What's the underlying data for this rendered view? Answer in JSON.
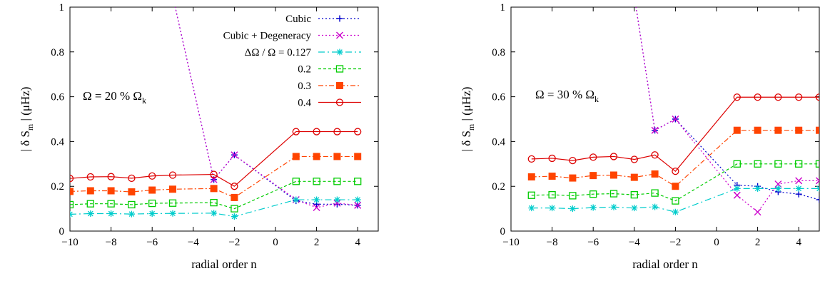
{
  "chart_data": [
    {
      "type": "line",
      "xlabel": "radial order n",
      "ylabel_main": "| δ S",
      "ylabel_sub": "m",
      "ylabel_tail": " | (μHz)",
      "annotation_main": "Ω = 20 % Ω",
      "annotation_sub": "k",
      "xlim": [
        -10,
        5
      ],
      "ylim": [
        0,
        1
      ],
      "xticks": [
        -10,
        -8,
        -6,
        -4,
        -2,
        0,
        2,
        4
      ],
      "yticks": [
        0,
        0.2,
        0.4,
        0.6,
        0.8,
        1
      ],
      "xtick_labels": [
        "−10",
        "−8",
        "−6",
        "−4",
        "−2",
        "0",
        "2",
        "4"
      ],
      "ytick_labels": [
        "0",
        "0.2",
        "0.4",
        "0.6",
        "0.8",
        "1"
      ],
      "legend_position": "top-right",
      "series": [
        {
          "name": "Cubic",
          "color": "#0000cc",
          "dash": "2,3",
          "marker": "plus",
          "x": [
            -5,
            -3,
            -2,
            1,
            2,
            3,
            4
          ],
          "y": [
            1.05,
            0.23,
            0.34,
            0.135,
            0.12,
            0.12,
            0.115
          ]
        },
        {
          "name": "Cubic + Degeneracy",
          "color": "#cc00cc",
          "dash": "2,3",
          "marker": "x",
          "x": [
            -5,
            -3,
            -2,
            1,
            2,
            3,
            4
          ],
          "y": [
            1.05,
            0.23,
            0.34,
            0.14,
            0.105,
            0.125,
            0.115
          ]
        },
        {
          "name": "ΔΩ / Ω = 0.127",
          "color": "#00cccc",
          "dash": "9,4,2,4",
          "marker": "star",
          "x": [
            -10,
            -9,
            -8,
            -7,
            -6,
            -5,
            -3,
            -2,
            1,
            2,
            3,
            4
          ],
          "y": [
            0.075,
            0.078,
            0.078,
            0.076,
            0.078,
            0.079,
            0.08,
            0.065,
            0.14,
            0.14,
            0.14,
            0.14
          ]
        },
        {
          "name": "0.2",
          "color": "#00cc00",
          "dash": "4,3",
          "marker": "square",
          "x": [
            -10,
            -9,
            -8,
            -7,
            -6,
            -5,
            -3,
            -2,
            1,
            2,
            3,
            4
          ],
          "y": [
            0.118,
            0.122,
            0.122,
            0.118,
            0.124,
            0.125,
            0.127,
            0.1,
            0.222,
            0.222,
            0.222,
            0.222
          ]
        },
        {
          "name": "0.3",
          "color": "#ff4400",
          "dash": "7,3,2,3",
          "marker": "filledsquare",
          "x": [
            -10,
            -9,
            -8,
            -7,
            -6,
            -5,
            -3,
            -2,
            1,
            2,
            3,
            4
          ],
          "y": [
            0.177,
            0.18,
            0.18,
            0.175,
            0.183,
            0.187,
            0.19,
            0.15,
            0.333,
            0.333,
            0.333,
            0.333
          ]
        },
        {
          "name": "0.4",
          "color": "#dd0000",
          "dash": "",
          "marker": "circle",
          "x": [
            -10,
            -9,
            -8,
            -7,
            -6,
            -5,
            -3,
            -2,
            1,
            2,
            3,
            4
          ],
          "y": [
            0.235,
            0.242,
            0.243,
            0.236,
            0.246,
            0.25,
            0.253,
            0.2,
            0.444,
            0.444,
            0.444,
            0.444
          ]
        }
      ]
    },
    {
      "type": "line",
      "xlabel": "radial order n",
      "ylabel_main": "| δ S",
      "ylabel_sub": "m",
      "ylabel_tail": " | (μHz)",
      "annotation_main": "Ω = 30 % Ω",
      "annotation_sub": "k",
      "xlim": [
        -10,
        5
      ],
      "ylim": [
        0,
        1
      ],
      "xticks": [
        -10,
        -8,
        -6,
        -4,
        -2,
        0,
        2,
        4
      ],
      "yticks": [
        0,
        0.2,
        0.4,
        0.6,
        0.8,
        1
      ],
      "xtick_labels": [
        "−10",
        "−8",
        "−6",
        "−4",
        "−2",
        "0",
        "2",
        "4"
      ],
      "ytick_labels": [
        "0",
        "0.2",
        "0.4",
        "0.6",
        "0.8",
        "1"
      ],
      "series": [
        {
          "color": "#0000cc",
          "dash": "2,3",
          "marker": "plus",
          "x": [
            -4,
            -3,
            -2,
            1,
            2,
            3,
            4,
            5
          ],
          "y": [
            1.05,
            0.45,
            0.5,
            0.205,
            0.2,
            0.175,
            0.165,
            0.14
          ]
        },
        {
          "color": "#cc00cc",
          "dash": "2,3",
          "marker": "x",
          "x": [
            -4,
            -3,
            -2,
            1,
            2,
            3,
            4,
            5
          ],
          "y": [
            1.05,
            0.45,
            0.5,
            0.16,
            0.085,
            0.21,
            0.225,
            0.225
          ]
        },
        {
          "color": "#00cccc",
          "dash": "9,4,2,4",
          "marker": "star",
          "x": [
            -9,
            -8,
            -7,
            -6,
            -5,
            -4,
            -3,
            -2,
            1,
            2,
            3,
            4,
            5
          ],
          "y": [
            0.103,
            0.103,
            0.1,
            0.105,
            0.107,
            0.103,
            0.108,
            0.085,
            0.19,
            0.19,
            0.19,
            0.19,
            0.19
          ]
        },
        {
          "color": "#00cc00",
          "dash": "4,3",
          "marker": "square",
          "x": [
            -9,
            -8,
            -7,
            -6,
            -5,
            -4,
            -3,
            -2,
            1,
            2,
            3,
            4,
            5
          ],
          "y": [
            0.16,
            0.162,
            0.158,
            0.165,
            0.167,
            0.162,
            0.17,
            0.135,
            0.3,
            0.3,
            0.3,
            0.3,
            0.3
          ]
        },
        {
          "color": "#ff4400",
          "dash": "7,3,2,3",
          "marker": "filledsquare",
          "x": [
            -9,
            -8,
            -7,
            -6,
            -5,
            -4,
            -3,
            -2,
            1,
            2,
            3,
            4,
            5
          ],
          "y": [
            0.242,
            0.245,
            0.237,
            0.248,
            0.25,
            0.24,
            0.255,
            0.2,
            0.45,
            0.45,
            0.45,
            0.45,
            0.45
          ]
        },
        {
          "color": "#dd0000",
          "dash": "",
          "marker": "circle",
          "x": [
            -9,
            -8,
            -7,
            -6,
            -5,
            -4,
            -3,
            -2,
            1,
            2,
            3,
            4,
            5
          ],
          "y": [
            0.322,
            0.325,
            0.315,
            0.33,
            0.333,
            0.32,
            0.34,
            0.267,
            0.598,
            0.598,
            0.598,
            0.598,
            0.598
          ]
        }
      ]
    }
  ]
}
